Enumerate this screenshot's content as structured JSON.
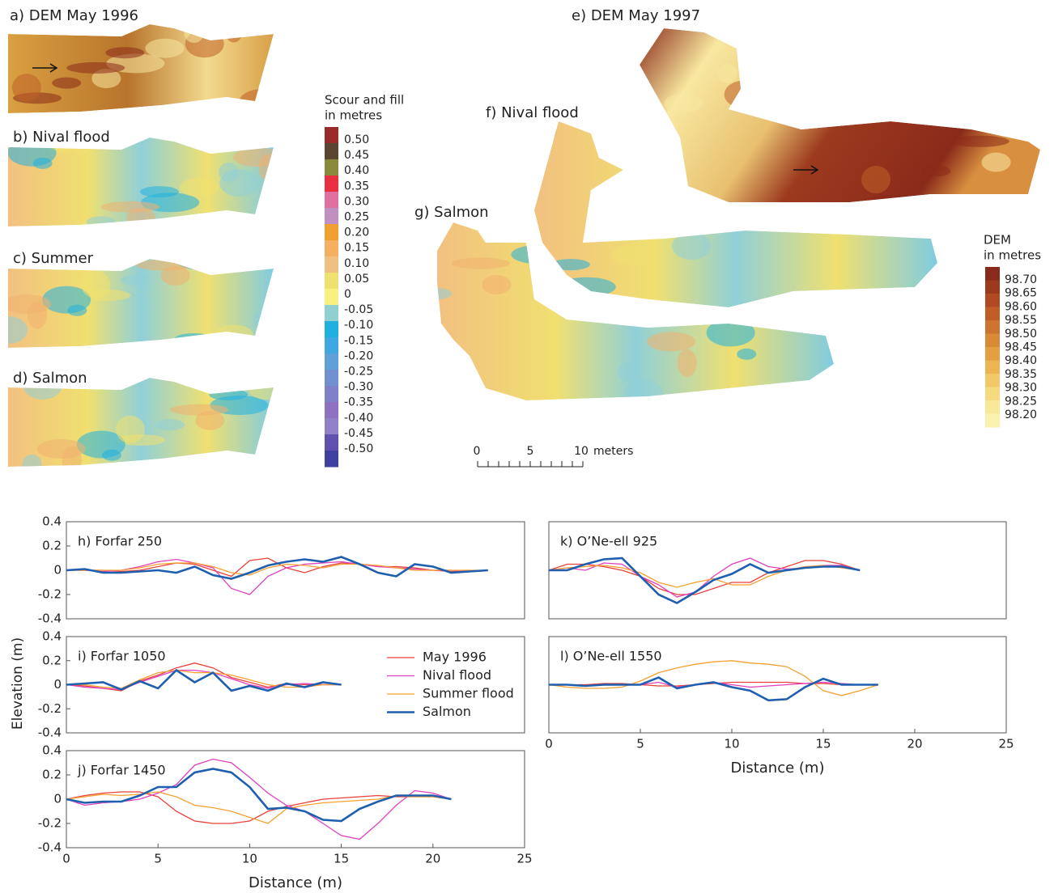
{
  "maps": {
    "panels": [
      {
        "label": "a) DEM May 1996"
      },
      {
        "label": "b) Nival flood"
      },
      {
        "label": "c) Summer"
      },
      {
        "label": "d) Salmon"
      },
      {
        "label": "e) DEM May 1997"
      },
      {
        "label": "f) Nival flood"
      },
      {
        "label": "g) Salmon"
      }
    ],
    "scour_legend": {
      "title": [
        "Scour and fill",
        "in metres"
      ],
      "labels": [
        "0.50",
        "0.45",
        "0.40",
        "0.35",
        "0.30",
        "0.25",
        "0.20",
        "0.15",
        "0.10",
        "0.05",
        "0",
        "-0.05",
        "-0.10",
        "-0.15",
        "-0.20",
        "-0.25",
        "-0.30",
        "-0.35",
        "-0.40",
        "-0.45",
        "-0.50"
      ],
      "colors": [
        "#9b2a2a",
        "#5a4530",
        "#8a8a3a",
        "#e83040",
        "#e070a0",
        "#c090c0",
        "#f0a030",
        "#f4b060",
        "#f0c080",
        "#f0e070",
        "#f8f080",
        "#90d0d0",
        "#20b0e0",
        "#40a8e0",
        "#60a0d8",
        "#7090d0",
        "#8080c8",
        "#9070c0",
        "#9080c8",
        "#6050b0",
        "#4040a0"
      ]
    },
    "dem_legend": {
      "title": [
        "DEM",
        "in metres"
      ],
      "labels": [
        "98.70",
        "98.65",
        "98.60",
        "98.55",
        "98.50",
        "98.45",
        "98.40",
        "98.35",
        "98.30",
        "98.25",
        "98.20"
      ],
      "colors": [
        "#8a2a1a",
        "#9c3a1e",
        "#b04a22",
        "#c05e28",
        "#cc7430",
        "#d88a36",
        "#e4a040",
        "#ecb452",
        "#f2c868",
        "#f6da80",
        "#f9e898",
        "#fbf2b0"
      ]
    },
    "scale_bar": {
      "labels": [
        "0",
        "5",
        "10"
      ],
      "unit": "meters"
    }
  },
  "chart_data": [
    {
      "type": "line",
      "title": "h) Forfar 250",
      "x": [
        0,
        1,
        2,
        3,
        4,
        5,
        6,
        7,
        8,
        9,
        10,
        11,
        12,
        13,
        14,
        15,
        16,
        17,
        18,
        19,
        20,
        21,
        22,
        23
      ],
      "series": [
        {
          "color": "#e8413a",
          "values": [
            0,
            0,
            0,
            -0.01,
            0,
            0.03,
            0.06,
            0.05,
            0,
            -0.05,
            0.08,
            0.1,
            0.02,
            -0.02,
            0.03,
            0.06,
            0.05,
            0.03,
            0.03,
            0.02,
            0,
            -0.01,
            -0.01,
            0
          ]
        },
        {
          "color": "#e040c0",
          "values": [
            0,
            0,
            -0.01,
            0,
            0.03,
            0.07,
            0.09,
            0.06,
            0.02,
            -0.15,
            -0.2,
            -0.05,
            0.02,
            0.05,
            0.06,
            0.07,
            0.05,
            0.03,
            0.02,
            0.01,
            0,
            0,
            -0.01,
            0
          ]
        },
        {
          "color": "#f5a030",
          "values": [
            0,
            0,
            0,
            0,
            0.02,
            0.05,
            0.06,
            0.06,
            0.03,
            -0.02,
            -0.04,
            0.02,
            0.05,
            0.04,
            0.02,
            0.05,
            0.05,
            0.04,
            0.02,
            0,
            0,
            0,
            0,
            0
          ]
        },
        {
          "color": "#1f5fb0",
          "values": [
            0,
            0.01,
            -0.02,
            -0.02,
            -0.01,
            0,
            -0.02,
            0.03,
            -0.04,
            -0.07,
            -0.02,
            0.04,
            0.07,
            0.09,
            0.07,
            0.11,
            0.05,
            -0.02,
            -0.05,
            0.05,
            0.03,
            -0.02,
            -0.01,
            0
          ]
        }
      ],
      "xlim": [
        0,
        25
      ],
      "ylim": [
        -0.4,
        0.4
      ],
      "yticks": [
        -0.4,
        -0.2,
        0,
        0.2,
        0.4
      ]
    },
    {
      "type": "line",
      "title": "i) Forfar 1050",
      "y_label": "Elevation (m)",
      "x": [
        0,
        1,
        2,
        3,
        4,
        5,
        6,
        7,
        8,
        9,
        10,
        11,
        12,
        13,
        14,
        15
      ],
      "series": [
        {
          "name": "May 1996",
          "color": "#e8413a",
          "values": [
            0,
            -0.01,
            -0.03,
            -0.05,
            0.03,
            0.08,
            0.14,
            0.18,
            0.14,
            0.06,
            0.02,
            -0.02,
            0.01,
            0,
            0,
            0
          ]
        },
        {
          "name": "Nival flood",
          "color": "#e040c0",
          "values": [
            0,
            -0.02,
            -0.03,
            -0.04,
            0.02,
            0.07,
            0.12,
            0.12,
            0.1,
            0.05,
            0,
            -0.03,
            0,
            0.01,
            0,
            0
          ]
        },
        {
          "name": "Summer flood",
          "color": "#f5a030",
          "values": [
            0,
            0,
            -0.02,
            -0.03,
            0.04,
            0.1,
            0.12,
            0.1,
            0.1,
            0.08,
            0.04,
            0,
            -0.02,
            -0.02,
            0,
            0
          ]
        },
        {
          "name": "Salmon",
          "color": "#1f5fb0",
          "values": [
            0,
            0.01,
            0.02,
            -0.04,
            0.03,
            -0.03,
            0.12,
            0.02,
            0.1,
            -0.05,
            -0.01,
            -0.05,
            0.01,
            -0.02,
            0.02,
            0
          ]
        }
      ],
      "xlim": [
        0,
        25
      ],
      "ylim": [
        -0.4,
        0.4
      ],
      "yticks": [
        -0.4,
        -0.2,
        0,
        0.2,
        0.4
      ]
    },
    {
      "type": "line",
      "title": "j) Forfar 1450",
      "x_label": "Distance (m)",
      "x": [
        0,
        1,
        2,
        3,
        4,
        5,
        6,
        7,
        8,
        9,
        10,
        11,
        12,
        13,
        14,
        15,
        16,
        17,
        18,
        19,
        20,
        21
      ],
      "series": [
        {
          "color": "#e8413a",
          "values": [
            0,
            0.03,
            0.05,
            0.06,
            0.06,
            0.02,
            -0.1,
            -0.18,
            -0.2,
            -0.2,
            -0.18,
            -0.1,
            -0.06,
            -0.03,
            0,
            0.01,
            0.02,
            0.03,
            0.02,
            0.02,
            0.02,
            0
          ]
        },
        {
          "color": "#e040c0",
          "values": [
            0,
            -0.05,
            -0.03,
            -0.02,
            0,
            0.05,
            0.12,
            0.28,
            0.33,
            0.3,
            0.18,
            0.05,
            -0.05,
            -0.1,
            -0.2,
            -0.3,
            -0.33,
            -0.2,
            -0.05,
            0.07,
            0.05,
            0
          ]
        },
        {
          "color": "#f5a030",
          "values": [
            0,
            0.02,
            0.04,
            0.03,
            0.04,
            0.06,
            0.02,
            -0.05,
            -0.07,
            -0.1,
            -0.15,
            -0.2,
            -0.08,
            -0.05,
            -0.03,
            -0.02,
            -0.01,
            0,
            0.03,
            0.02,
            0.02,
            0
          ]
        },
        {
          "color": "#1f5fb0",
          "values": [
            0,
            -0.03,
            -0.02,
            -0.02,
            0.03,
            0.1,
            0.1,
            0.22,
            0.25,
            0.22,
            0.1,
            -0.08,
            -0.07,
            -0.1,
            -0.17,
            -0.18,
            -0.08,
            -0.02,
            0.03,
            0.03,
            0.03,
            0
          ]
        }
      ],
      "xlim": [
        0,
        25
      ],
      "ylim": [
        -0.4,
        0.4
      ],
      "xticks": [
        0,
        5,
        10,
        15,
        20,
        25
      ],
      "yticks": [
        -0.4,
        -0.2,
        0,
        0.2,
        0.4
      ]
    },
    {
      "type": "line",
      "title": "k) O’Ne-ell 925",
      "x": [
        0,
        1,
        2,
        3,
        4,
        5,
        6,
        7,
        8,
        9,
        10,
        11,
        12,
        13,
        14,
        15,
        16,
        17
      ],
      "series": [
        {
          "color": "#e8413a",
          "values": [
            0,
            0.05,
            0.05,
            0.03,
            0,
            -0.05,
            -0.15,
            -0.2,
            -0.2,
            -0.15,
            -0.1,
            -0.1,
            -0.02,
            0.03,
            0.08,
            0.08,
            0.05,
            0
          ]
        },
        {
          "color": "#e040c0",
          "values": [
            0,
            0.02,
            0,
            0.06,
            0.05,
            -0.05,
            -0.12,
            -0.22,
            -0.18,
            -0.05,
            0.05,
            0.1,
            0.03,
            0.01,
            0.02,
            0.04,
            0.04,
            0
          ]
        },
        {
          "color": "#f5a030",
          "values": [
            0,
            0.02,
            0.03,
            0.04,
            0.02,
            -0.02,
            -0.1,
            -0.14,
            -0.1,
            -0.07,
            -0.12,
            -0.12,
            -0.05,
            0,
            0.03,
            0.04,
            0.02,
            0
          ]
        },
        {
          "color": "#1f5fb0",
          "values": [
            0,
            0,
            0.05,
            0.09,
            0.1,
            -0.05,
            -0.2,
            -0.27,
            -0.18,
            -0.08,
            -0.03,
            0.05,
            -0.02,
            0,
            0.02,
            0.03,
            0.03,
            0
          ]
        }
      ],
      "xlim": [
        0,
        25
      ],
      "ylim": [
        -0.4,
        0.4
      ]
    },
    {
      "type": "line",
      "title": "l) O’Ne-ell 1550",
      "x_label": "Distance (m)",
      "x": [
        0,
        1,
        2,
        3,
        4,
        5,
        6,
        7,
        8,
        9,
        10,
        11,
        12,
        13,
        14,
        15,
        16,
        17,
        18
      ],
      "series": [
        {
          "color": "#e8413a",
          "values": [
            0,
            0,
            0,
            0.01,
            0.01,
            0,
            -0.01,
            -0.01,
            0,
            0.01,
            0.02,
            0.02,
            0.02,
            0.02,
            0.01,
            0.01,
            0,
            0,
            0
          ]
        },
        {
          "color": "#e040c0",
          "values": [
            0,
            0,
            -0.01,
            0,
            0,
            0,
            0.02,
            -0.02,
            0,
            0.02,
            0,
            -0.02,
            -0.01,
            0,
            0.01,
            0.02,
            0.01,
            0,
            0
          ]
        },
        {
          "color": "#f5a030",
          "values": [
            0,
            -0.02,
            -0.03,
            -0.03,
            -0.02,
            0.03,
            0.1,
            0.14,
            0.17,
            0.19,
            0.2,
            0.18,
            0.17,
            0.15,
            0.07,
            -0.05,
            -0.09,
            -0.05,
            0
          ]
        },
        {
          "color": "#1f5fb0",
          "values": [
            0,
            0,
            -0.01,
            0,
            0,
            0,
            0.06,
            -0.03,
            0,
            0.02,
            -0.02,
            -0.05,
            -0.13,
            -0.12,
            -0.02,
            0.05,
            0,
            0,
            0
          ]
        }
      ],
      "xlim": [
        0,
        25
      ],
      "ylim": [
        -0.4,
        0.4
      ],
      "xticks": [
        0,
        5,
        10,
        15,
        20,
        25
      ]
    }
  ]
}
